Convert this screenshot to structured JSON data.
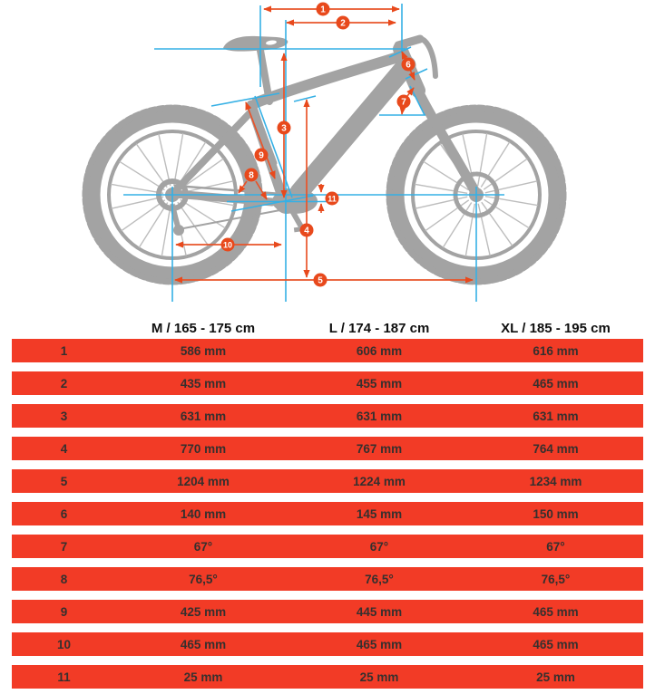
{
  "diagram": {
    "callouts": [
      "1",
      "2",
      "3",
      "4",
      "5",
      "6",
      "7",
      "8",
      "9",
      "10",
      "11"
    ],
    "colors": {
      "accent": "#e8491c",
      "reference_line": "#35b0e5",
      "bike_silhouette": "#a3a3a3",
      "table_row": "#f23b26"
    }
  },
  "table": {
    "headers": [
      "M / 165 - 175 cm",
      "L / 174 - 187 cm",
      "XL / 185 - 195 cm"
    ],
    "rows": [
      {
        "num": "1",
        "m": "586 mm",
        "l": "606 mm",
        "xl": "616 mm"
      },
      {
        "num": "2",
        "m": "435 mm",
        "l": "455 mm",
        "xl": "465 mm"
      },
      {
        "num": "3",
        "m": "631 mm",
        "l": "631 mm",
        "xl": "631 mm"
      },
      {
        "num": "4",
        "m": "770 mm",
        "l": "767 mm",
        "xl": "764 mm"
      },
      {
        "num": "5",
        "m": "1204 mm",
        "l": "1224 mm",
        "xl": "1234 mm"
      },
      {
        "num": "6",
        "m": "140 mm",
        "l": "145 mm",
        "xl": "150 mm"
      },
      {
        "num": "7",
        "m": "67°",
        "l": "67°",
        "xl": "67°"
      },
      {
        "num": "8",
        "m": "76,5°",
        "l": "76,5°",
        "xl": "76,5°"
      },
      {
        "num": "9",
        "m": "425 mm",
        "l": "445 mm",
        "xl": "465 mm"
      },
      {
        "num": "10",
        "m": "465 mm",
        "l": "465 mm",
        "xl": "465 mm"
      },
      {
        "num": "11",
        "m": "25 mm",
        "l": "25 mm",
        "xl": "25 mm"
      }
    ]
  },
  "chart_data": {
    "type": "table",
    "title": "Bike geometry size chart",
    "columns": [
      "#",
      "M / 165 - 175 cm",
      "L / 174 - 187 cm",
      "XL / 185 - 195 cm"
    ],
    "rows": [
      [
        "1",
        "586 mm",
        "606 mm",
        "616 mm"
      ],
      [
        "2",
        "435 mm",
        "455 mm",
        "465 mm"
      ],
      [
        "3",
        "631 mm",
        "631 mm",
        "631 mm"
      ],
      [
        "4",
        "770 mm",
        "767 mm",
        "764 mm"
      ],
      [
        "5",
        "1204 mm",
        "1224 mm",
        "1234 mm"
      ],
      [
        "6",
        "140 mm",
        "145 mm",
        "150 mm"
      ],
      [
        "7",
        "67°",
        "67°",
        "67°"
      ],
      [
        "8",
        "76,5°",
        "76,5°",
        "76,5°"
      ],
      [
        "9",
        "425 mm",
        "445 mm",
        "465 mm"
      ],
      [
        "10",
        "465 mm",
        "465 mm",
        "465 mm"
      ],
      [
        "11",
        "25 mm",
        "25 mm",
        "25 mm"
      ]
    ]
  }
}
